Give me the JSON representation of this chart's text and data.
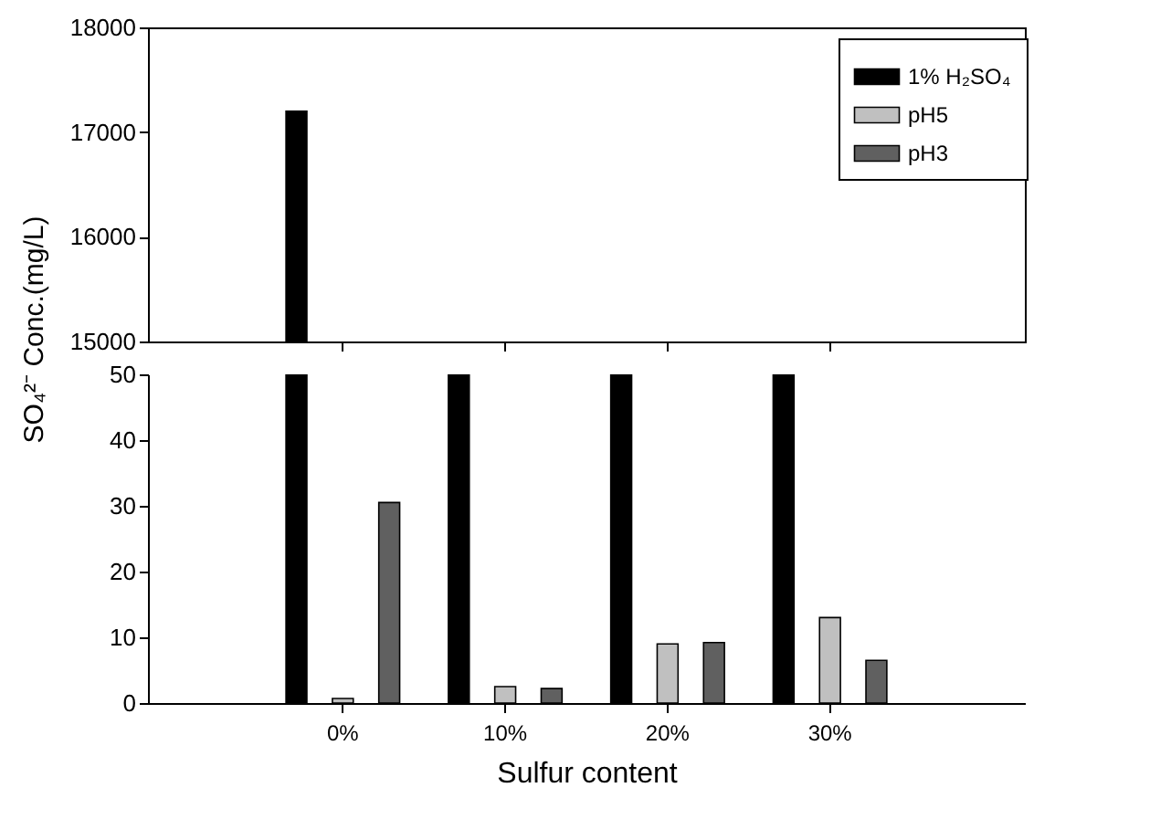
{
  "chart_data": [
    {
      "type": "bar",
      "categories": [
        null,
        null,
        null,
        null
      ],
      "ylabel": "SO₄²⁻ Conc.(mg/L)",
      "ylim": [
        15000,
        18000
      ],
      "yticks": [
        15000,
        16000,
        17000,
        18000
      ],
      "tick_labels": "y",
      "series": [
        {
          "color": "#000000",
          "values": [
            17200,
            null,
            null,
            null
          ]
        },
        {
          "color": "#c0c0c0",
          "values": [
            null,
            null,
            null,
            null
          ]
        },
        {
          "color": "#606060",
          "values": [
            null,
            null,
            null,
            null
          ]
        }
      ]
    },
    {
      "type": "bar",
      "categories": [
        "0%",
        "10%",
        "20%",
        "30%"
      ],
      "xlabel": "Sulfur content",
      "ylim": [
        0,
        50
      ],
      "yticks": [
        0,
        10,
        20,
        30,
        40,
        50
      ],
      "legend": "top right",
      "series": [
        {
          "name": "1% H₂SO₄",
          "color": "#000000",
          "values": [
            50,
            50,
            50,
            50
          ]
        },
        {
          "name": "pH5",
          "color": "#c0c0c0",
          "values": [
            0.7,
            2.5,
            9,
            13
          ]
        },
        {
          "name": "pH3",
          "color": "#606060",
          "values": [
            30.5,
            2.2,
            9.2,
            6.5
          ]
        }
      ]
    }
  ]
}
